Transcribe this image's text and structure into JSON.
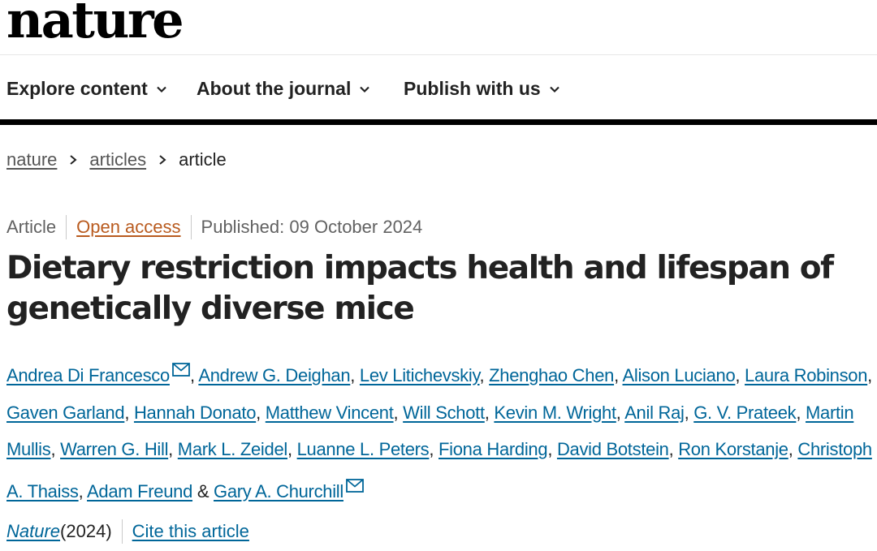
{
  "logo": "nature",
  "nav": {
    "explore": "Explore content",
    "about": "About the journal",
    "publish": "Publish with us"
  },
  "breadcrumb": {
    "home": "nature",
    "articles": "articles",
    "current": "article"
  },
  "meta": {
    "type": "Article",
    "access": "Open access",
    "published": "Published: 09 October 2024"
  },
  "title": "Dietary restriction impacts health and lifespan of genetically diverse mice",
  "authors": [
    "Andrea Di Francesco",
    "Andrew G. Deighan",
    "Lev Litichevskiy",
    "Zhenghao Chen",
    "Alison Luciano",
    "Laura Robinson",
    "Gaven Garland",
    "Hannah Donato",
    "Matthew Vincent",
    "Will Schott",
    "Kevin M. Wright",
    "Anil Raj",
    "G. V. Prateek",
    "Martin Mullis",
    "Warren G. Hill",
    "Mark L. Zeidel",
    "Luanne L. Peters",
    "Fiona Harding",
    "David Botstein",
    "Ron Korstanje",
    "Christoph A. Thaiss",
    "Adam Freund",
    "Gary A. Churchill"
  ],
  "author_sep": ", ",
  "author_last_sep": " & ",
  "citation": {
    "journal": "Nature",
    "year": " (2024)",
    "cite": "Cite this article"
  },
  "icons": {
    "chevron": "chevron-down-icon",
    "mail": "mail-icon"
  },
  "colors": {
    "link": "#006699",
    "open_access": "#b95b1f",
    "rule": "#000000"
  }
}
